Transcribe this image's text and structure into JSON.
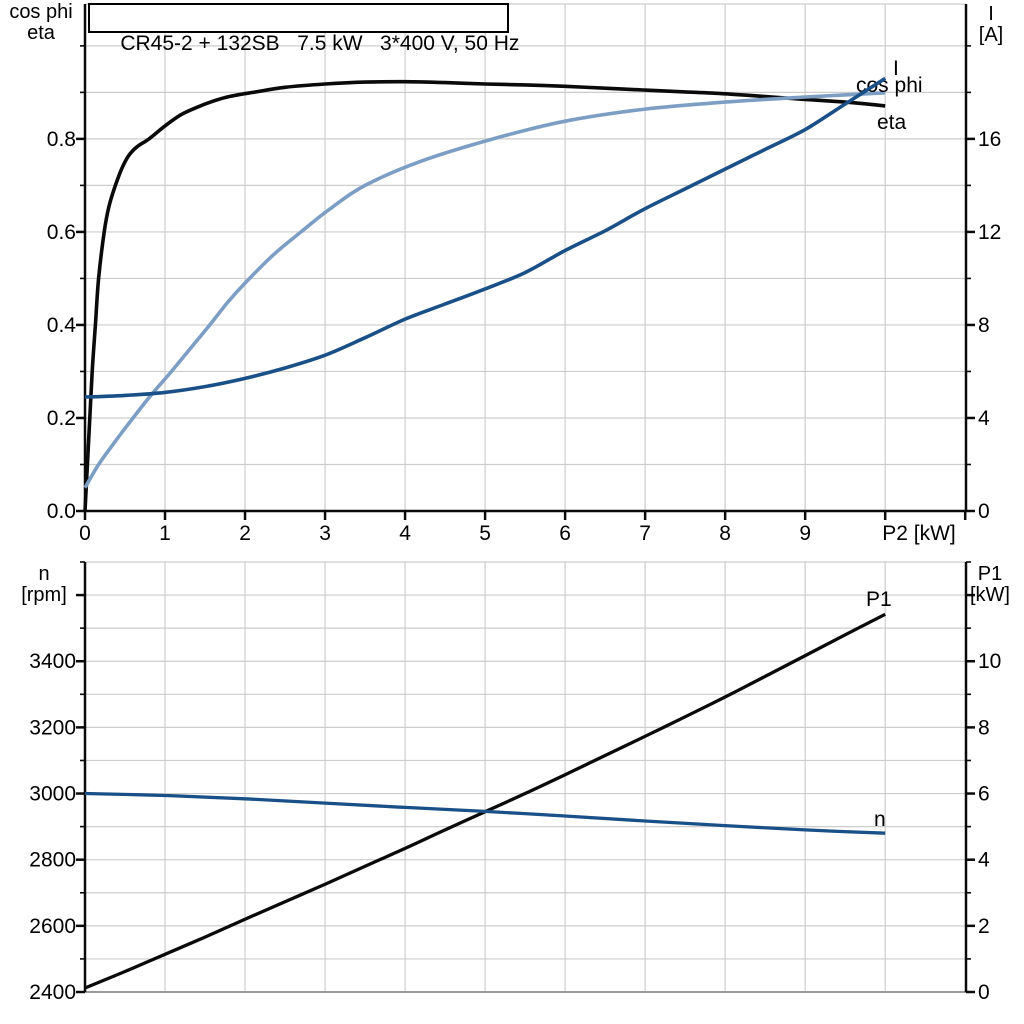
{
  "colors": {
    "black": "#0a0a0a",
    "dark_blue": "#1a5088",
    "light_blue": "#7d9ec4",
    "grid": "#cdcdcd",
    "axis_gray": "#9a9a9a",
    "text": "#000000",
    "background": "#ffffff"
  },
  "chart_data": [
    {
      "type": "line",
      "title": "CR45-2 + 132SB   7.5 kW   3*400 V, 50 Hz",
      "x_axis": {
        "label": "P2 [kW]",
        "range": [
          0,
          11.01
        ],
        "ticks": [
          0,
          1,
          2,
          3,
          4,
          5,
          6,
          7,
          8,
          9
        ],
        "tick_labels": [
          "0",
          "1",
          "2",
          "3",
          "4",
          "5",
          "6",
          "7",
          "8",
          "9"
        ],
        "unlabeled_ticks": [
          10,
          11
        ],
        "gridlines": [
          1,
          2,
          3,
          4,
          5,
          6,
          7,
          8,
          9,
          10,
          11
        ]
      },
      "left_axis": {
        "title_lines": [
          "cos phi",
          "eta"
        ],
        "range": [
          0,
          1.09
        ],
        "major_ticks": [
          0,
          0.2,
          0.4,
          0.6,
          0.8
        ],
        "tick_labels": [
          "0.0",
          "0.2",
          "0.4",
          "0.6",
          "0.8"
        ],
        "extra_ticks": [],
        "minor_step": 0.1,
        "grid_step": 0.1
      },
      "right_axis": {
        "title_lines": [
          "I",
          "[A]"
        ],
        "range": [
          0,
          21.8
        ],
        "major_ticks": [
          0,
          4,
          8,
          12,
          16
        ],
        "tick_labels": [
          "0",
          "4",
          "8",
          "12",
          "16"
        ],
        "extra_ticks": [],
        "minor_step": 2
      },
      "series": [
        {
          "name": "eta",
          "axis": "left",
          "color": "black",
          "label": "eta",
          "points": [
            [
              0,
              0
            ],
            [
              0.03,
              0.1
            ],
            [
              0.06,
              0.2
            ],
            [
              0.09,
              0.3
            ],
            [
              0.13,
              0.4
            ],
            [
              0.17,
              0.5
            ],
            [
              0.24,
              0.6
            ],
            [
              0.3,
              0.655
            ],
            [
              0.38,
              0.7
            ],
            [
              0.47,
              0.74
            ],
            [
              0.55,
              0.765
            ],
            [
              0.65,
              0.783
            ],
            [
              0.8,
              0.8
            ],
            [
              1.0,
              0.828
            ],
            [
              1.2,
              0.852
            ],
            [
              1.4,
              0.868
            ],
            [
              1.6,
              0.881
            ],
            [
              1.8,
              0.891
            ],
            [
              2.1,
              0.9
            ],
            [
              2.5,
              0.911
            ],
            [
              3.0,
              0.918
            ],
            [
              3.5,
              0.922
            ],
            [
              4.0,
              0.923
            ],
            [
              4.5,
              0.921
            ],
            [
              5.0,
              0.918
            ],
            [
              5.5,
              0.916
            ],
            [
              6.0,
              0.913
            ],
            [
              6.5,
              0.909
            ],
            [
              7.0,
              0.905
            ],
            [
              7.5,
              0.901
            ],
            [
              8.0,
              0.897
            ],
            [
              8.5,
              0.891
            ],
            [
              9.0,
              0.885
            ],
            [
              9.5,
              0.879
            ],
            [
              10.0,
              0.871
            ]
          ]
        },
        {
          "name": "cos phi",
          "axis": "left",
          "color": "light_blue",
          "label": "cos phi",
          "points": [
            [
              0,
              0.05
            ],
            [
              0.17,
              0.1
            ],
            [
              0.38,
              0.15
            ],
            [
              0.6,
              0.2
            ],
            [
              0.83,
              0.25
            ],
            [
              1.08,
              0.3
            ],
            [
              1.32,
              0.35
            ],
            [
              1.56,
              0.4
            ],
            [
              1.78,
              0.448
            ],
            [
              2.0,
              0.49
            ],
            [
              2.35,
              0.55
            ],
            [
              2.7,
              0.6
            ],
            [
              3.05,
              0.648
            ],
            [
              3.5,
              0.7
            ],
            [
              4.2,
              0.752
            ],
            [
              5.1,
              0.8
            ],
            [
              6.0,
              0.838
            ],
            [
              7.0,
              0.864
            ],
            [
              8.0,
              0.879
            ],
            [
              9.0,
              0.89
            ],
            [
              10.0,
              0.899
            ]
          ]
        },
        {
          "name": "I",
          "axis": "right",
          "color": "dark_blue",
          "label": "I",
          "points": [
            [
              0,
              4.9
            ],
            [
              0.5,
              4.97
            ],
            [
              1,
              5.1
            ],
            [
              1.5,
              5.35
            ],
            [
              2,
              5.7
            ],
            [
              2.5,
              6.15
            ],
            [
              3,
              6.7
            ],
            [
              3.5,
              7.45
            ],
            [
              4,
              8.25
            ],
            [
              4.5,
              8.9
            ],
            [
              5,
              9.55
            ],
            [
              5.5,
              10.25
            ],
            [
              6,
              11.2
            ],
            [
              6.5,
              12.05
            ],
            [
              7,
              13.0
            ],
            [
              7.5,
              13.85
            ],
            [
              8,
              14.7
            ],
            [
              8.5,
              15.55
            ],
            [
              9,
              16.4
            ],
            [
              9.5,
              17.5
            ],
            [
              10,
              18.6
            ]
          ]
        }
      ]
    },
    {
      "type": "line",
      "title": "",
      "x_axis": {
        "label": "",
        "range": [
          0,
          11.01
        ],
        "ticks": [],
        "tick_labels": [],
        "unlabeled_ticks": [],
        "gridlines": [
          1,
          2,
          3,
          4,
          5,
          6,
          7,
          8,
          9,
          10,
          11
        ]
      },
      "left_axis": {
        "title_lines": [
          "n",
          "[rpm]"
        ],
        "range": [
          2400,
          3700
        ],
        "major_ticks": [
          2400,
          2600,
          2800,
          3000,
          3200,
          3400
        ],
        "tick_labels": [
          "2400",
          "2600",
          "2800",
          "3000",
          "3200",
          "3400"
        ],
        "extra_ticks": [
          3600
        ],
        "minor_step": 100,
        "grid_step": 100
      },
      "right_axis": {
        "title_lines": [
          "P1",
          "[kW]"
        ],
        "range": [
          0,
          13
        ],
        "major_ticks": [
          0,
          2,
          4,
          6,
          8,
          10
        ],
        "tick_labels": [
          "0",
          "2",
          "4",
          "6",
          "8",
          "10"
        ],
        "extra_ticks": [
          12
        ],
        "minor_step": 1
      },
      "series": [
        {
          "name": "P1",
          "axis": "right",
          "color": "black",
          "label": "P1",
          "points": [
            [
              0,
              0.12
            ],
            [
              0.5,
              0.62
            ],
            [
              1,
              1.14
            ],
            [
              1.5,
              1.66
            ],
            [
              2,
              2.2
            ],
            [
              2.5,
              2.73
            ],
            [
              3,
              3.26
            ],
            [
              3.5,
              3.8
            ],
            [
              4,
              4.34
            ],
            [
              4.5,
              4.9
            ],
            [
              5,
              5.45
            ],
            [
              5.5,
              6.0
            ],
            [
              6,
              6.57
            ],
            [
              6.5,
              7.15
            ],
            [
              7,
              7.73
            ],
            [
              7.5,
              8.32
            ],
            [
              8,
              8.92
            ],
            [
              8.5,
              9.54
            ],
            [
              9,
              10.17
            ],
            [
              9.5,
              10.8
            ],
            [
              10,
              11.42
            ]
          ]
        },
        {
          "name": "n",
          "axis": "left",
          "color": "dark_blue",
          "label": "n",
          "points": [
            [
              0,
              3000
            ],
            [
              1,
              2994
            ],
            [
              2,
              2984
            ],
            [
              3,
              2971
            ],
            [
              4,
              2958
            ],
            [
              5,
              2946
            ],
            [
              6,
              2932
            ],
            [
              7,
              2917
            ],
            [
              8,
              2903
            ],
            [
              9,
              2890
            ],
            [
              10,
              2880
            ]
          ]
        }
      ]
    }
  ]
}
